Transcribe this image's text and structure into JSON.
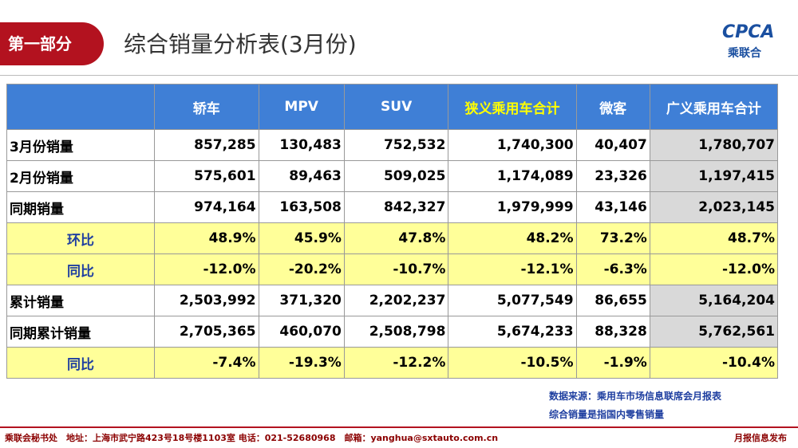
{
  "header": {
    "section": "第一部分",
    "title": "综合销量分析表(3月份)",
    "logo": "CPCA",
    "logo_sub": "乘联合"
  },
  "table": {
    "columns": [
      "轿车",
      "MPV",
      "SUV",
      "狭义乘用车合计",
      "微客",
      "广义乘用车合计"
    ],
    "rows": [
      {
        "label": "3月份销量",
        "values": [
          "857,285",
          "130,483",
          "752,532",
          "1,740,300",
          "40,407",
          "1,780,707"
        ]
      },
      {
        "label": "2月份销量",
        "values": [
          "575,601",
          "89,463",
          "509,025",
          "1,174,089",
          "23,326",
          "1,197,415"
        ]
      },
      {
        "label": "同期销量",
        "values": [
          "974,164",
          "163,508",
          "842,327",
          "1,979,999",
          "43,146",
          "2,023,145"
        ]
      },
      {
        "label": "环比",
        "values": [
          "48.9%",
          "45.9%",
          "47.8%",
          "48.2%",
          "73.2%",
          "48.7%"
        ]
      },
      {
        "label": "同比",
        "values": [
          "-12.0%",
          "-20.2%",
          "-10.7%",
          "-12.1%",
          "-6.3%",
          "-12.0%"
        ]
      },
      {
        "label": "累计销量",
        "values": [
          "2,503,992",
          "371,320",
          "2,202,237",
          "5,077,549",
          "86,655",
          "5,164,204"
        ]
      },
      {
        "label": "同期累计销量",
        "values": [
          "2,705,365",
          "460,070",
          "2,508,798",
          "5,674,233",
          "88,328",
          "5,762,561"
        ]
      },
      {
        "label": "同比",
        "values": [
          "-7.4%",
          "-19.3%",
          "-12.2%",
          "-10.5%",
          "-1.9%",
          "-10.4%"
        ]
      }
    ]
  },
  "notes": [
    "数据来源：乘用车市场信息联席会月报表",
    "综合销量是指国内零售销量"
  ],
  "footer": {
    "left": "乘联会秘书处　地址：上海市武宁路423号18号楼1103室 电话：021-52680968　邮箱：yanghua@sxtauto.com.cn",
    "right": "月报信息发布"
  }
}
